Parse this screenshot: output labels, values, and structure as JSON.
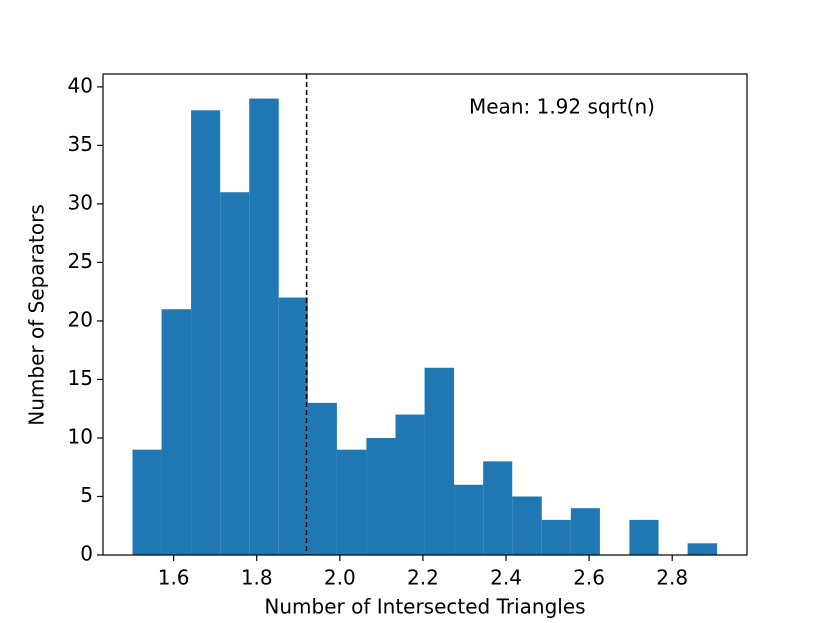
{
  "chart_data": {
    "type": "histogram",
    "xlabel": "Number of Intersected Triangles",
    "ylabel": "Number of Separators",
    "annotation": "Mean: 1.92 sqrt(n)",
    "mean_line": 1.92,
    "bins": [
      1.501,
      1.571,
      1.642,
      1.712,
      1.782,
      1.853,
      1.923,
      1.993,
      2.064,
      2.134,
      2.204,
      2.275,
      2.345,
      2.415,
      2.486,
      2.556,
      2.626,
      2.697,
      2.767,
      2.837,
      2.908
    ],
    "values": [
      9,
      21,
      38,
      31,
      39,
      22,
      13,
      9,
      10,
      12,
      16,
      6,
      8,
      5,
      3,
      4,
      0,
      3,
      0,
      1
    ],
    "color": "#1f77b4",
    "xlim": [
      1.43,
      2.98
    ],
    "ylim": [
      0,
      41.1
    ],
    "xticks": [
      1.6,
      1.8,
      {
        "value": 2.0,
        "label": "2.0"
      },
      2.2,
      2.4,
      2.6,
      2.8
    ],
    "yticks": [
      0,
      5,
      10,
      15,
      20,
      25,
      30,
      35,
      40
    ]
  }
}
